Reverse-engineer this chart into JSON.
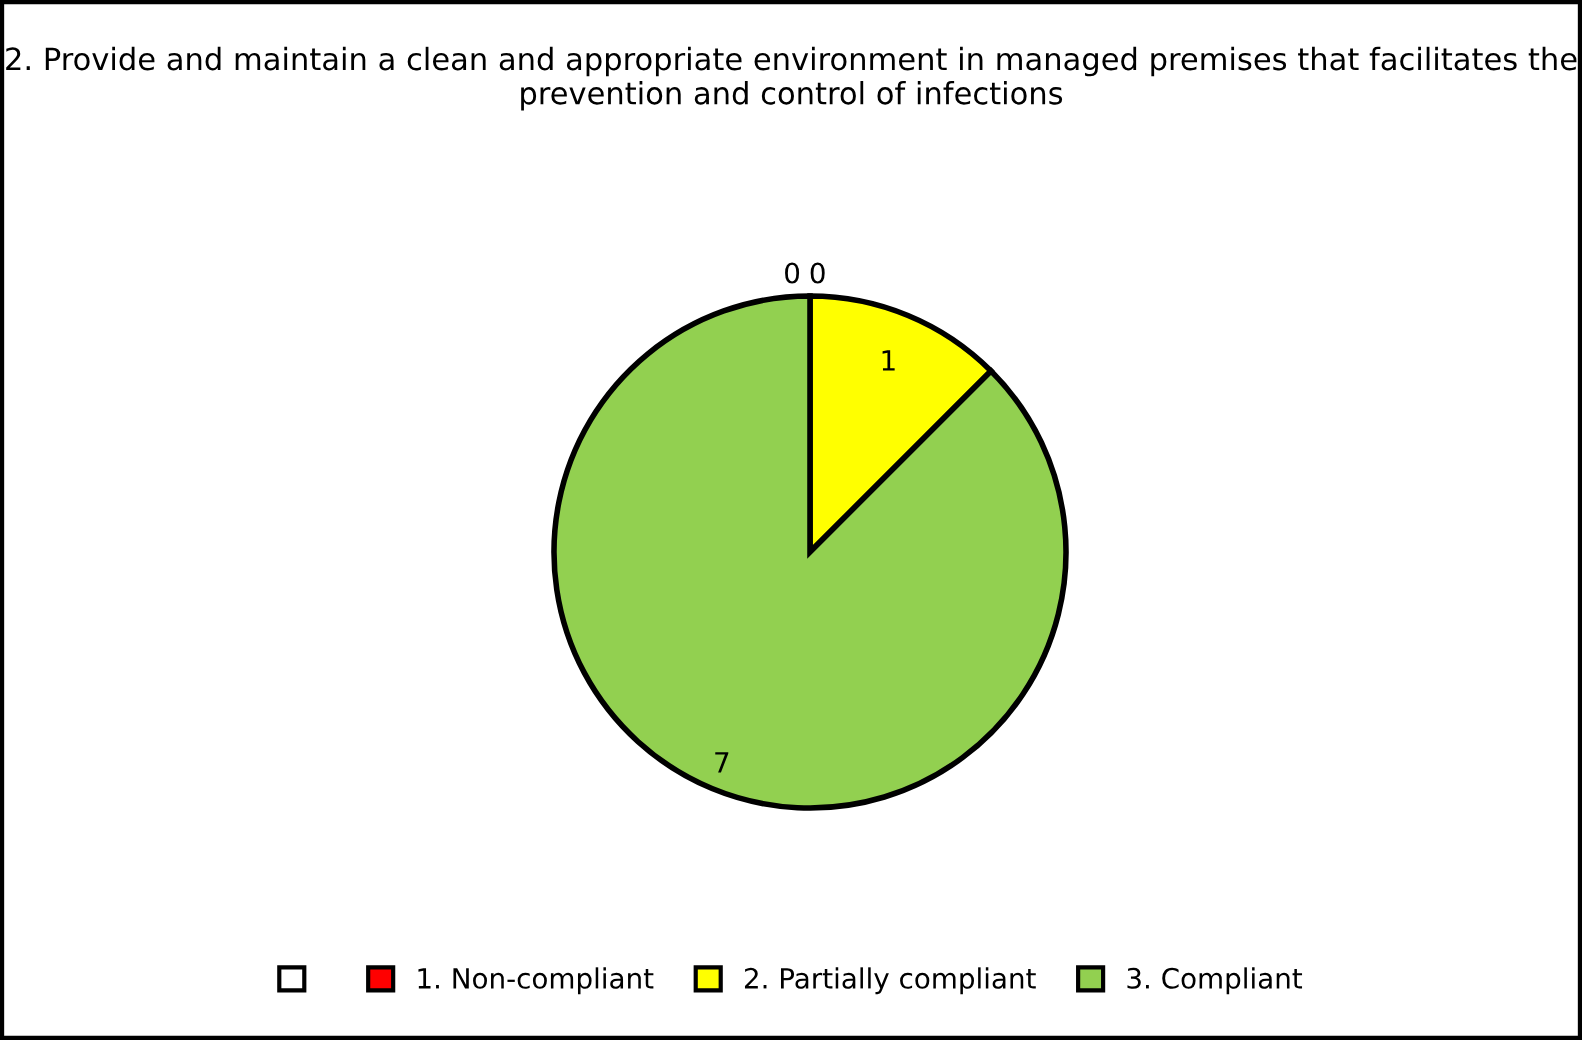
{
  "chart_data": {
    "type": "pie",
    "title": "2. Provide and maintain a clean and appropriate environment in managed premises that facilitates the prevention and control of infections",
    "categories": [
      null,
      "1. Non-compliant",
      "2. Partially compliant",
      "3. Compliant"
    ],
    "values": [
      0,
      0,
      1,
      7
    ],
    "colors": [
      "#ffffff",
      "#ff0000",
      "#ffff00",
      "#92d050"
    ],
    "value_labels": [
      "0",
      "0",
      "1",
      "7"
    ],
    "legend": "bottom"
  }
}
